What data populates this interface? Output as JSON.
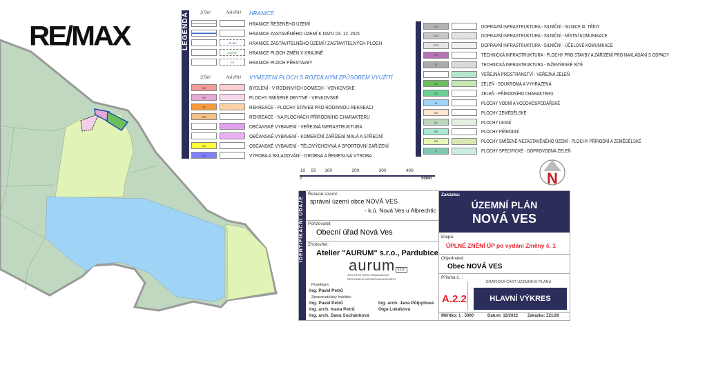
{
  "logo": "RE/MAX",
  "legend": {
    "title": "LEGENDA",
    "col_stav": "STAV",
    "col_navrh": "NÁVRH",
    "sec_boundaries": "HRANICE",
    "boundaries": [
      {
        "label": "HRANICE ŘEŠENÉHO ÚZEMÍ",
        "navrh_code": ""
      },
      {
        "label": "HRANICE ZASTAVĚNÉHO ÚZEMÍ K DATU  03. 12. 2021",
        "navrh_code": ""
      },
      {
        "label": "HRANICE ZASTAVITELNÉHO ÚZEMÍ / ZASTAVITELNÝCH PLOCH",
        "navrh_code": "Z1-BV"
      },
      {
        "label": "HRANICE PLOCH ZMĚN V KRAJINĚ",
        "navrh_code": "K1b-NP"
      },
      {
        "label": "HRANICE PLOCH PŘESTAVBY",
        "navrh_code": "P1"
      }
    ],
    "sec_areas": "VYMEZENÍ PLOCH S ROZDÍLNÝM ZPŮSOBEM VYUŽITÍ",
    "areas_left": [
      {
        "label": "BYDLENÍ - V RODINNÝCH DOMECH - VENKOVSKÉ",
        "code": "BV",
        "stav": "#f39a9a",
        "navrh": "#f7c4c4"
      },
      {
        "label": "PLOCHY SMÍŠENÉ OBYTNÉ - VENKOVSKÉ",
        "code": "SV",
        "stav": "#e6a8d4",
        "navrh": "#f2cfe8"
      },
      {
        "label": "REKREACE - PLOCHY STAVEB PRO RODINNOU REKREACI",
        "code": "RI",
        "stav": "#f5993a",
        "navrh": "#f8c690"
      },
      {
        "label": "REKREACE - NA PLOCHÁCH PŘÍRODNÍHO CHARAKTERU",
        "code": "RN",
        "stav": "#f2bf86",
        "navrh": "#ffffff"
      },
      {
        "label": "OBČANSKÉ VYBAVENÍ - VEŘEJNÁ INFRASTRUKTURA",
        "code": "",
        "stav": "#ffffff",
        "navrh": "#d98be8"
      },
      {
        "label": "OBČANSKÉ VYBAVENÍ - KOMERČNÍ ZAŘÍZENÍ MALÁ A STŘEDNÍ",
        "code": "",
        "stav": "#ffffff",
        "navrh": "#e49cf0"
      },
      {
        "label": "OBČANSKÉ VYBAVENÍ - TĚLOVÝCHOVNÁ A SPORTOVNÍ ZAŘÍZENÍ",
        "code": "OS",
        "stav": "#ffff3a",
        "navrh": "#ffffff"
      },
      {
        "label": "VÝROBA A SKLADOVÁNÍ - DROBNÁ A ŘEMESLNÁ VÝROBA",
        "code": "VD",
        "stav": "#8080ff",
        "navrh": "#ffffff"
      }
    ],
    "areas_right": [
      {
        "label": "DOPRAVNÍ INFRASTRUKTURA - SILNIČNÍ - SILNICE III. TŘÍDY",
        "code": "DS1",
        "stav": "#b4b4b4",
        "navrh": "#ffffff"
      },
      {
        "label": "DOPRAVNÍ INFRASTRUKTURA - SILNIČNÍ - MÍSTNÍ KOMUNIKACE",
        "code": "DS2",
        "stav": "#c8c8c8",
        "navrh": "#dcdcdc"
      },
      {
        "label": "DOPRAVNÍ INFRASTRUKTURA - SILNIČNÍ - ÚČELOVÉ KOMUNIKACE",
        "code": "DS3",
        "stav": "#e4e4e4",
        "navrh": "#eeeeee"
      },
      {
        "label": "TECHNICKÁ INFRASTRUKTURA  - PLOCHY PRO STAVBY A ZAŘÍZENÍ PRO NAKLÁDÁNÍ S ODPADY",
        "code": "TO",
        "stav": "#b673b6",
        "navrh": "#ffffff"
      },
      {
        "label": "TECHNICKÁ INFRASTRUKTURA - INŽENÝRSKÉ SÍTĚ",
        "code": "TI",
        "stav": "#aaaaaa",
        "navrh": "#d2d2d2"
      },
      {
        "label": "VEŘEJNÁ PROSTRANSTVÍ - VEŘEJNÁ ZELEŇ",
        "code": "",
        "stav": "#ffffff",
        "navrh": "#a6e0c0"
      },
      {
        "label": "ZELEŇ - SOUKROMÁ A VYHRAZENÁ",
        "code": "ZS",
        "stav": "#6cbf5c",
        "navrh": "#b8e2a0"
      },
      {
        "label": "ZELEŇ - PŘÍRODNÍHO CHARAKTERU",
        "code": "ZP",
        "stav": "#6ccf94",
        "navrh": "#ffffff"
      },
      {
        "label": "PLOCHY VODNÍ A VODOHOSPODÁŘSKÉ",
        "code": "W",
        "stav": "#9fd4f6",
        "navrh": "#ffffff"
      },
      {
        "label": "PLOCHY ZEMĚDĚLSKÉ",
        "code": "NZ",
        "stav": "#fbe5d0",
        "navrh": "#ffffff"
      },
      {
        "label": "PLOCHY LESNÍ",
        "code": "NL",
        "stav": "#bcd6bc",
        "navrh": "#dcecd8"
      },
      {
        "label": "PLOCHY PŘÍRODNÍ",
        "code": "NP",
        "stav": "#a8e8d0",
        "navrh": "#ffffff"
      },
      {
        "label": "PLOCHY SMÍŠENÉ NEZASTAVĚNÉHO ÚZEMÍ - PLOCHY PŘÍRODNÍ A ZEMĚDĚLSKÉ",
        "code": "NS",
        "stav": "#e4f5b4",
        "navrh": "#cfe2a0"
      },
      {
        "label": "PLOCHY SPECIFICKÉ - DOPROVODNÁ ZELEŇ",
        "code": "X",
        "stav": "#7ec8b4",
        "navrh": "#c0e8dc"
      }
    ]
  },
  "scale_bar": {
    "ticks": [
      "10",
      "50",
      "100",
      "200",
      "300",
      "400"
    ],
    "start": "0",
    "end": "500m"
  },
  "north_arrow": "N",
  "title_block": {
    "side_label": "IDENTIFIKAČNÍ ÚDAJE",
    "reseni_label": "Řešené území:",
    "reseni_line1": "správní území obce NOVÁ VES",
    "reseni_line2": "- k.ú. Nová Ves u Albrechtic",
    "porizovatel_label": "Pořizovatel:",
    "porizovatel": "Obecní úřad Nová Ves",
    "zhotovitel_label": "Zhotovitel:",
    "zhotovitel": "Atelier \"AURUM\" s.r.o., Pardubice",
    "aurum_logo": "aurum",
    "aurum_sro": "s.r.o.",
    "aurum_sub1": "ARCHITEKTURA+URBANISMUS",
    "aurum_sub2": "REGIONÁLNÍ ÚZEMNÍ MANAGEMENT",
    "projektant_label": "Projektant:",
    "projektant": "Ing. Pavel Petrů",
    "kolektiv_label": "Zpracovatelský kolektiv:",
    "kolektiv": [
      "Ing. Pavel Petrů",
      "Ing. arch. Ivana Petrů",
      "Ing. arch. Dana Suchánková",
      "Ing. arch. Jana Půlpytlová",
      "Olga Lukášová"
    ],
    "zakazka_label": "Zakázka:",
    "title1": "ÚZEMNÍ PLÁN",
    "title2": "NOVÁ VES",
    "etapa_label": "Etapa:",
    "etapa": "ÚPLNÉ ZNĚNÍ ÚP po vydání Změny č. 1",
    "objednatel_label": "Objednatel:",
    "objednatel": "Obec  NOVÁ VES",
    "priloha_label": "Příloha č. :",
    "priloha": "A.2.2",
    "graficka": "GRAFICKÁ ČÁST ÚZEMNÍHO PLÁNU",
    "vykres": "HLAVNÍ VÝKRES",
    "meritko_label": "Měřítko:",
    "meritko": "1 : 5000",
    "datum_label": "Datum:",
    "datum": "12/2022",
    "zakazka2_label": "Zakázka:",
    "zakazka2": "Z21/20"
  },
  "colors": {
    "navy": "#2b2d5a",
    "red": "#e8202a",
    "forest": "#bcd6bc",
    "water": "#9fd4f6",
    "mixed": "#e4f5b4"
  }
}
